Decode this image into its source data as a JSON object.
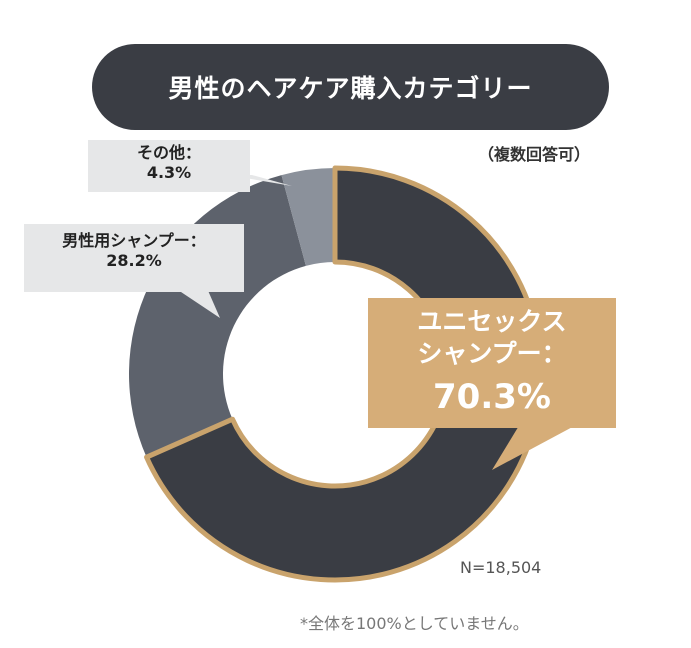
{
  "title": "男性のヘアケア購入カテゴリー",
  "subtitle": "（複数回答可）",
  "sample_size": "N=18,504",
  "footnote": "*全体を100%としていません。",
  "colors": {
    "unisex": "#3a3d44",
    "mens": "#5d626c",
    "other": "#8b919b",
    "accent": "#c9a36c",
    "callout_gray": "#e6e7e8",
    "callout_gold": "#d6ad78"
  },
  "chart_data": {
    "type": "pie",
    "donut": true,
    "categories": [
      "ユニセックスシャンプー",
      "男性用シャンプー",
      "その他"
    ],
    "values": [
      70.3,
      28.2,
      4.3
    ],
    "unit": "%",
    "title": "男性のヘアケア購入カテゴリー",
    "subtitle": "（複数回答可）",
    "labels": [
      {
        "name": "ユニセックス\nシャンプー：",
        "line1": "ユニセックス",
        "line2": "シャンプー：",
        "value": "70.3%"
      },
      {
        "name": "男性用シャンプー：",
        "value": "28.2%"
      },
      {
        "name": "その他：",
        "value": "4.3%"
      }
    ]
  }
}
